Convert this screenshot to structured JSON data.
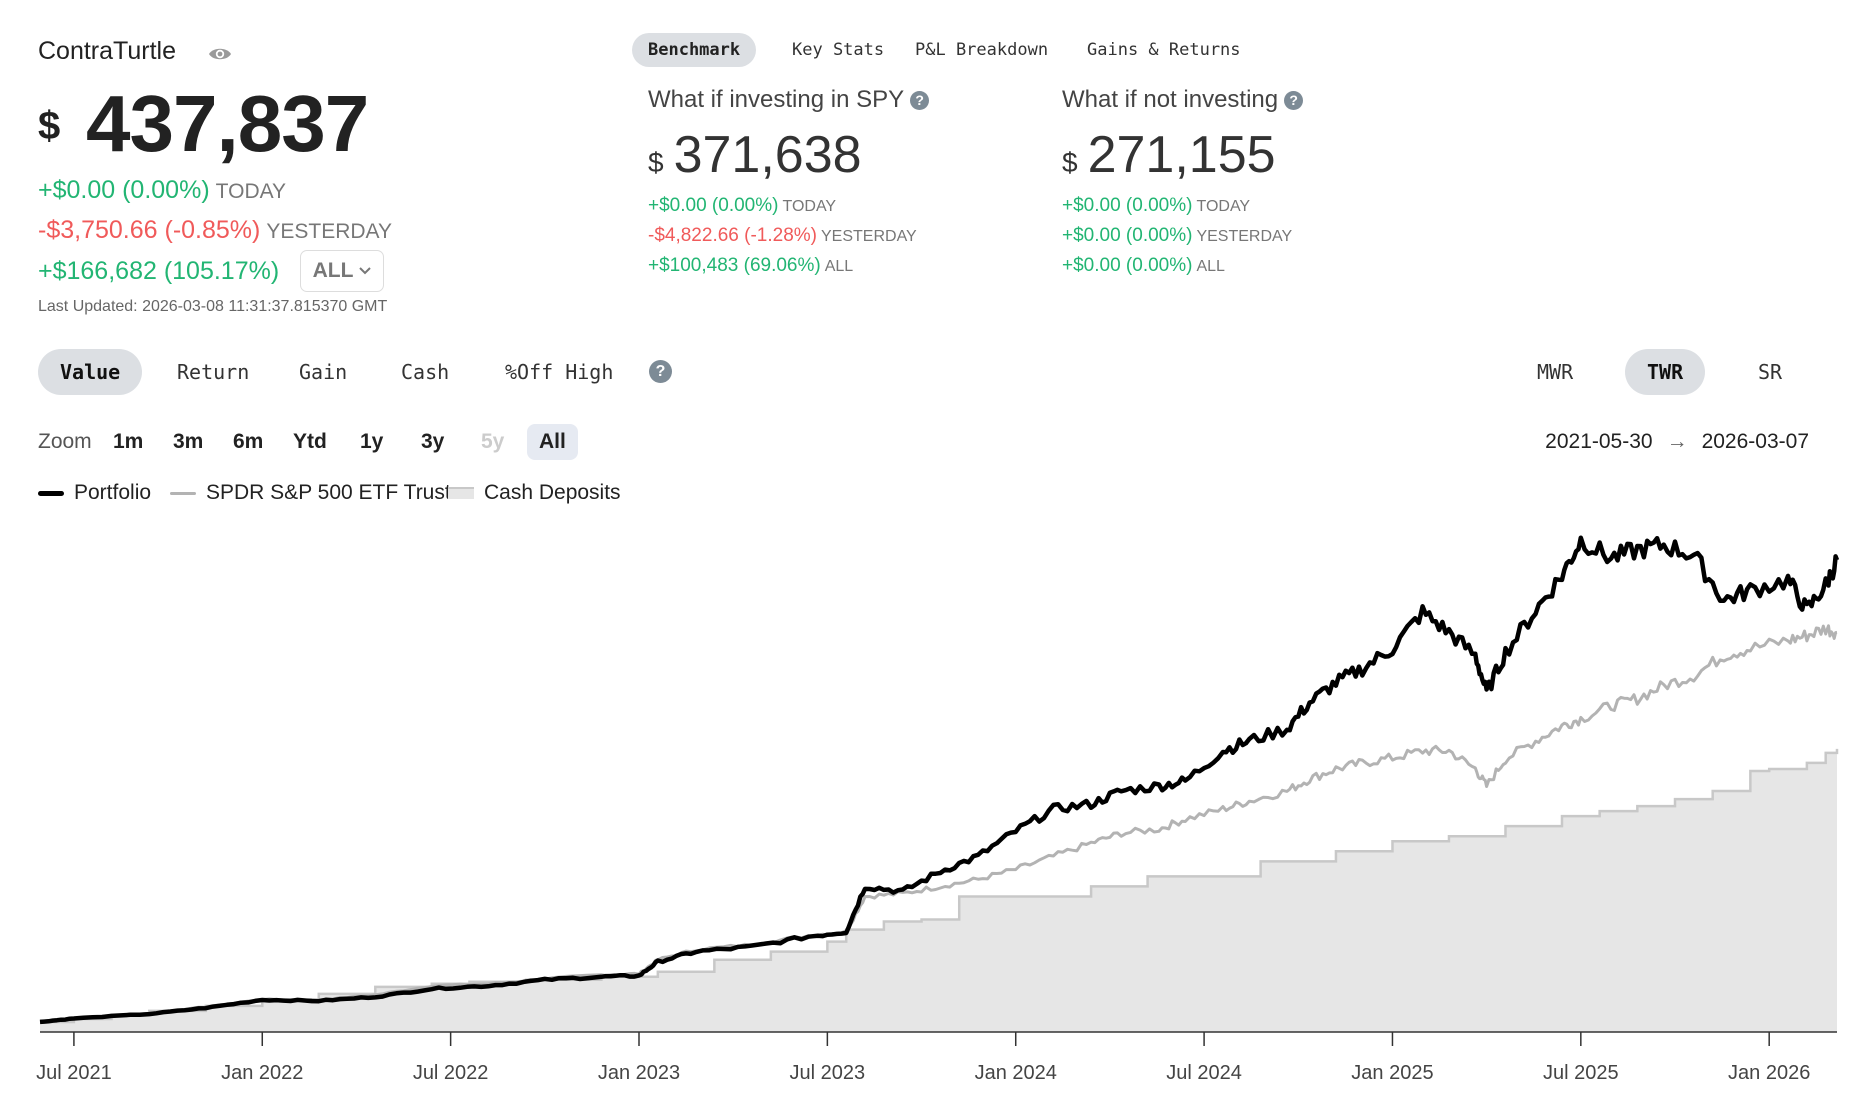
{
  "portfolio": {
    "name": "ContraTurtle",
    "currency": "$",
    "value": "437,837",
    "today": {
      "change": "+$0.00 (0.00%)",
      "label": "TODAY"
    },
    "yesterday": {
      "change": "-$3,750.66 (-0.85%)",
      "label": "YESTERDAY"
    },
    "all": {
      "change": "+$166,682 (105.17%)",
      "label": "ALL"
    },
    "last_updated": "Last Updated: 2026-03-08 11:31:37.815370 GMT"
  },
  "top_tabs": [
    {
      "label": "Benchmark",
      "active": true
    },
    {
      "label": "Key Stats",
      "active": false
    },
    {
      "label": "P&L Breakdown",
      "active": false
    },
    {
      "label": "Gains & Returns",
      "active": false
    }
  ],
  "benchmarks": [
    {
      "title": "What if investing in SPY",
      "currency": "$",
      "value": "371,638",
      "rows": [
        {
          "change": "+$0.00 (0.00%)",
          "label": "TODAY",
          "color": "#22b573"
        },
        {
          "change": "-$4,822.66 (-1.28%)",
          "label": "YESTERDAY",
          "color": "#f05a5a"
        },
        {
          "change": "+$100,483 (69.06%)",
          "label": "ALL",
          "color": "#22b573"
        }
      ]
    },
    {
      "title": "What if not investing",
      "currency": "$",
      "value": "271,155",
      "rows": [
        {
          "change": "+$0.00 (0.00%)",
          "label": "TODAY",
          "color": "#22b573"
        },
        {
          "change": "+$0.00 (0.00%)",
          "label": "YESTERDAY",
          "color": "#22b573"
        },
        {
          "change": "+$0.00 (0.00%)",
          "label": "ALL",
          "color": "#22b573"
        }
      ]
    }
  ],
  "help_glyph": "?",
  "mode_tabs": [
    {
      "label": "Value",
      "active": true
    },
    {
      "label": "Return",
      "active": false
    },
    {
      "label": "Gain",
      "active": false
    },
    {
      "label": "Cash",
      "active": false
    },
    {
      "label": "%Off High",
      "active": false
    }
  ],
  "return_tabs": [
    {
      "label": "MWR",
      "active": false
    },
    {
      "label": "TWR",
      "active": true
    },
    {
      "label": "SR",
      "active": false
    }
  ],
  "zoom": {
    "label": "Zoom",
    "buttons": [
      {
        "label": "1m",
        "state": "normal"
      },
      {
        "label": "3m",
        "state": "normal"
      },
      {
        "label": "6m",
        "state": "normal"
      },
      {
        "label": "Ytd",
        "state": "normal"
      },
      {
        "label": "1y",
        "state": "normal"
      },
      {
        "label": "3y",
        "state": "normal"
      },
      {
        "label": "5y",
        "state": "disabled"
      },
      {
        "label": "All",
        "state": "active"
      }
    ]
  },
  "date_range": {
    "from": "2021-05-30",
    "arrow": "→",
    "to": "2026-03-07"
  },
  "legend": [
    {
      "label": "Portfolio",
      "color": "#000000"
    },
    {
      "label": "SPDR S&P 500 ETF Trust",
      "color": "#b3b3b3"
    },
    {
      "label": "Cash Deposits",
      "color": "#e6e6e6"
    }
  ],
  "chart_data": {
    "type": "line",
    "x_ticks": [
      "Jul 2021",
      "Jan 2022",
      "Jul 2022",
      "Jan 2023",
      "Jul 2023",
      "Jan 2024",
      "Jul 2024",
      "Jan 2025",
      "Jul 2025",
      "Jan 2026"
    ],
    "x_tick_positions": [
      2021.5,
      2022.0,
      2022.5,
      2023.0,
      2023.5,
      2024.0,
      2024.5,
      2025.0,
      2025.5,
      2026.0
    ],
    "xlim": [
      2021.41,
      2026.18
    ],
    "ylim": [
      0,
      500000
    ],
    "series": [
      {
        "name": "Portfolio",
        "color": "#000000",
        "x": [
          2021.41,
          2021.5,
          2021.7,
          2021.85,
          2022.0,
          2022.15,
          2022.3,
          2022.45,
          2022.6,
          2022.75,
          2022.9,
          2023.0,
          2023.05,
          2023.15,
          2023.3,
          2023.45,
          2023.55,
          2023.6,
          2023.7,
          2023.8,
          2023.9,
          2024.0,
          2024.1,
          2024.2,
          2024.28,
          2024.38,
          2024.45,
          2024.55,
          2024.62,
          2024.72,
          2024.78,
          2024.85,
          2024.92,
          2025.0,
          2025.08,
          2025.15,
          2025.22,
          2025.25,
          2025.3,
          2025.38,
          2025.45,
          2025.5,
          2025.58,
          2025.65,
          2025.72,
          2025.8,
          2025.88,
          2025.95,
          2026.05,
          2026.1,
          2026.15,
          2026.18
        ],
        "y": [
          10000,
          13500,
          18000,
          24000,
          32000,
          31000,
          35000,
          43000,
          46000,
          52000,
          55000,
          56000,
          70000,
          80000,
          85000,
          95000,
          100000,
          145000,
          140000,
          160000,
          175000,
          200000,
          222000,
          227000,
          240000,
          245000,
          250000,
          280000,
          290000,
          302000,
          328000,
          348000,
          362000,
          382000,
          418000,
          398000,
          375000,
          338000,
          378000,
          420000,
          455000,
          490000,
          472000,
          480000,
          485000,
          475000,
          430000,
          440000,
          450000,
          420000,
          445000,
          470000
        ]
      },
      {
        "name": "SPDR S&P 500 ETF Trust",
        "color": "#b3b3b3",
        "x": [
          2021.41,
          2021.5,
          2021.7,
          2021.85,
          2022.0,
          2022.15,
          2022.3,
          2022.45,
          2022.6,
          2022.75,
          2022.9,
          2023.0,
          2023.05,
          2023.15,
          2023.3,
          2023.45,
          2023.55,
          2023.6,
          2023.7,
          2023.8,
          2023.9,
          2024.0,
          2024.1,
          2024.2,
          2024.28,
          2024.38,
          2024.45,
          2024.55,
          2024.62,
          2024.72,
          2024.78,
          2024.85,
          2024.92,
          2025.0,
          2025.08,
          2025.15,
          2025.22,
          2025.25,
          2025.3,
          2025.38,
          2025.45,
          2025.5,
          2025.58,
          2025.65,
          2025.72,
          2025.8,
          2025.88,
          2025.95,
          2026.05,
          2026.1,
          2026.15,
          2026.18
        ],
        "y": [
          10000,
          13500,
          18500,
          25000,
          32500,
          32000,
          37000,
          46000,
          48000,
          53000,
          57000,
          58000,
          72000,
          82000,
          87000,
          96000,
          100000,
          135000,
          138000,
          145000,
          152000,
          162000,
          175000,
          188000,
          198000,
          202000,
          212000,
          222000,
          230000,
          240000,
          252000,
          262000,
          268000,
          273000,
          280000,
          280000,
          262000,
          245000,
          272000,
          290000,
          305000,
          312000,
          325000,
          332000,
          345000,
          355000,
          375000,
          382000,
          390000,
          395000,
          402000,
          398000
        ]
      },
      {
        "name": "Cash Deposits",
        "color": "#c8c8c8",
        "fill": "#e6e6e6",
        "step": true,
        "x": [
          2021.41,
          2021.5,
          2021.6,
          2021.7,
          2021.85,
          2022.0,
          2022.15,
          2022.3,
          2022.45,
          2022.55,
          2022.7,
          2022.9,
          2023.05,
          2023.2,
          2023.35,
          2023.5,
          2023.55,
          2023.65,
          2023.75,
          2023.85,
          2024.0,
          2024.1,
          2024.2,
          2024.35,
          2024.55,
          2024.65,
          2024.85,
          2024.95,
          2025.0,
          2025.15,
          2025.3,
          2025.45,
          2025.55,
          2025.65,
          2025.75,
          2025.85,
          2025.95,
          2026.0,
          2026.1,
          2026.15,
          2026.18
        ],
        "y": [
          10000,
          13000,
          17000,
          21000,
          26000,
          32000,
          38000,
          45000,
          48000,
          50000,
          52000,
          55000,
          60000,
          72000,
          80000,
          90000,
          102000,
          110000,
          112000,
          135000,
          135000,
          135000,
          145000,
          155000,
          155000,
          170000,
          180000,
          180000,
          190000,
          195000,
          205000,
          215000,
          220000,
          225000,
          232000,
          240000,
          260000,
          262000,
          268000,
          278000,
          282000
        ]
      }
    ]
  }
}
